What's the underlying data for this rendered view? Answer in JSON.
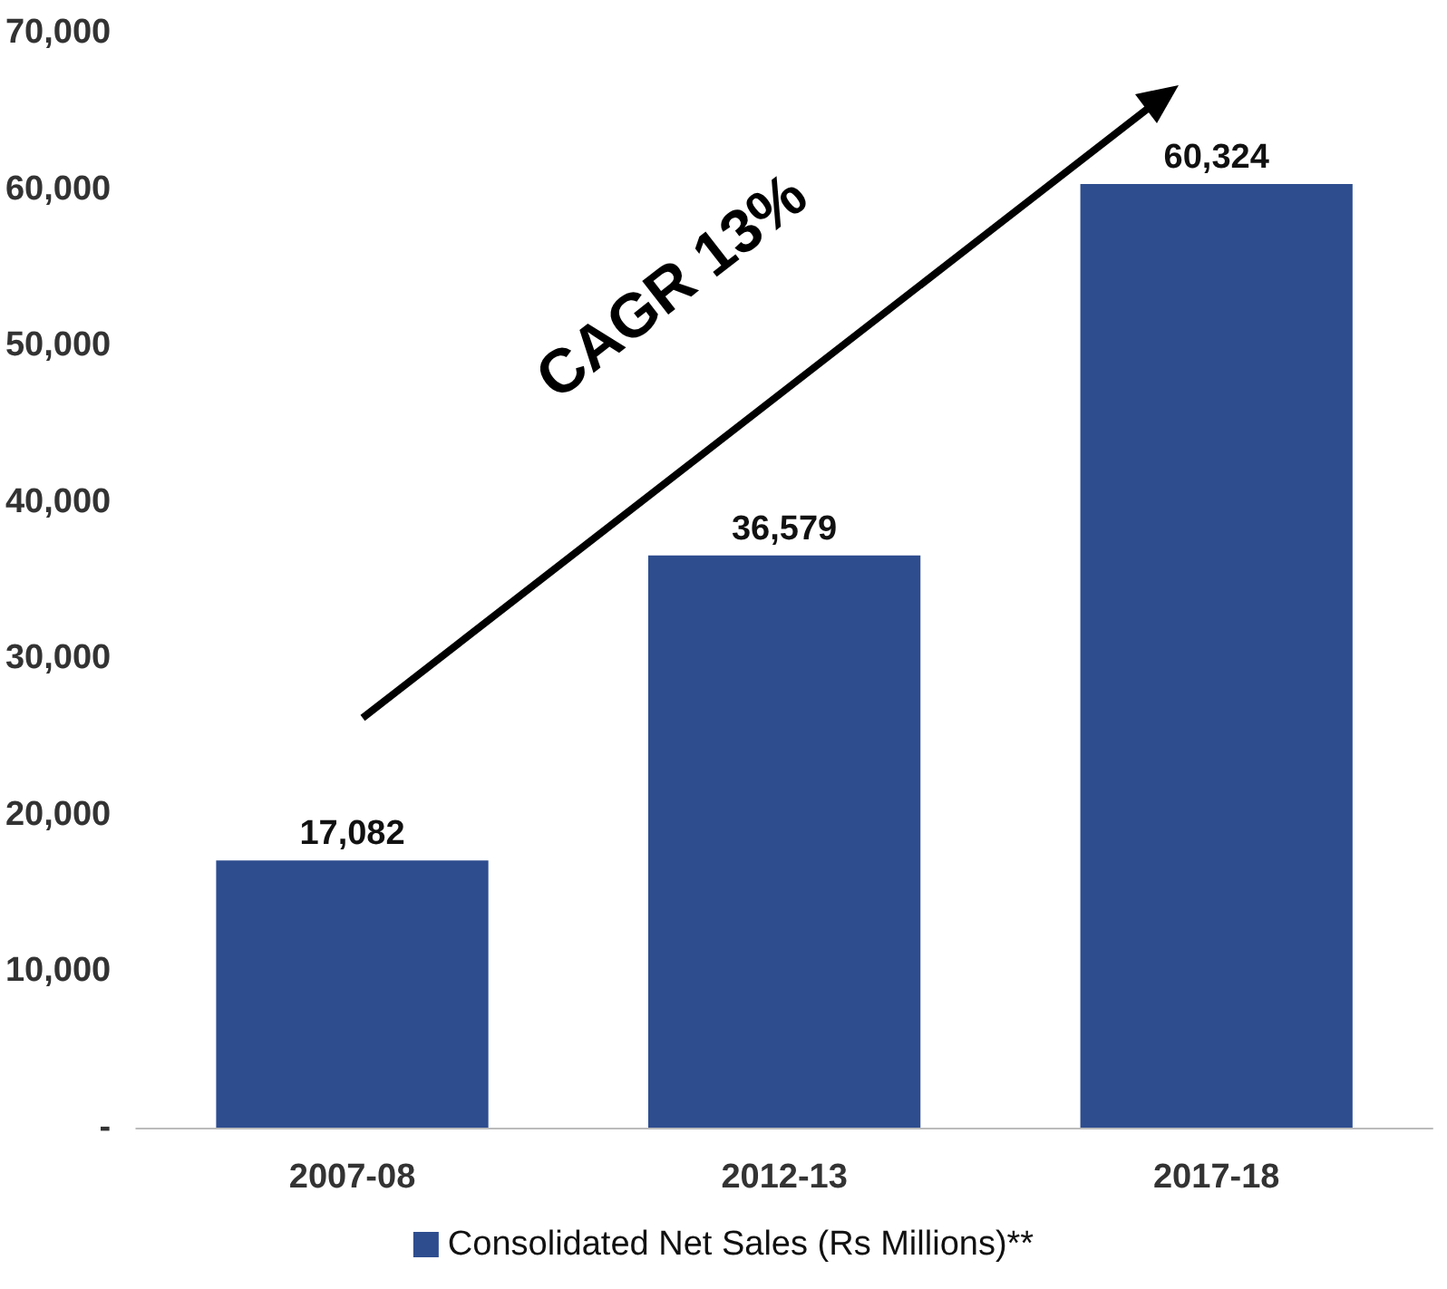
{
  "chart_data": {
    "type": "bar",
    "categories": [
      "2007-08",
      "2012-13",
      "2017-18"
    ],
    "series": [
      {
        "name": "Consolidated Net Sales (Rs Millions)**",
        "color": "#2e4d8f",
        "values": [
          17082,
          36579,
          60324
        ],
        "value_labels": [
          "17,082",
          "36,579",
          "60,324"
        ]
      }
    ],
    "ylim": [
      0,
      70000
    ],
    "yticks": [
      {
        "value": 0,
        "label": "-"
      },
      {
        "value": 10000,
        "label": "10,000"
      },
      {
        "value": 20000,
        "label": "20,000"
      },
      {
        "value": 30000,
        "label": "30,000"
      },
      {
        "value": 40000,
        "label": "40,000"
      },
      {
        "value": 50000,
        "label": "50,000"
      },
      {
        "value": 60000,
        "label": "60,000"
      },
      {
        "value": 70000,
        "label": "70,000"
      }
    ],
    "grid": false,
    "legend": "bottom",
    "annotations": [
      "CAGR 13%"
    ]
  }
}
